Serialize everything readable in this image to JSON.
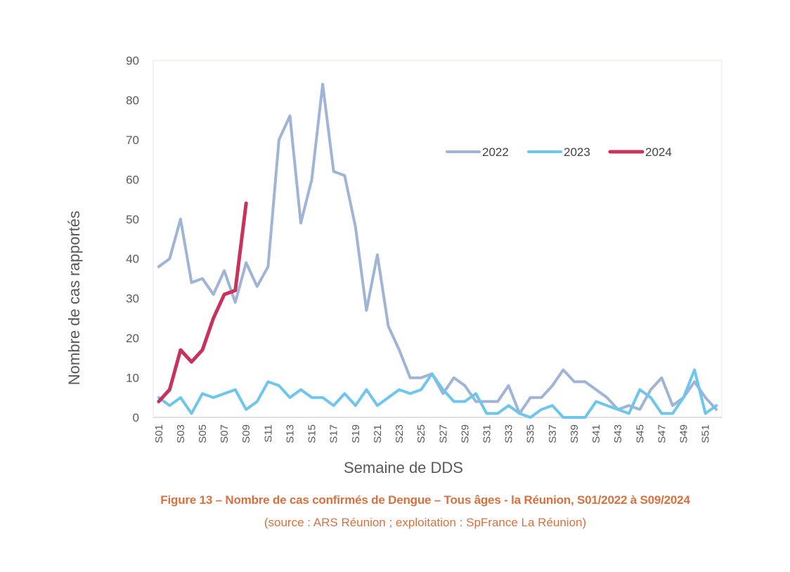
{
  "chart_data": {
    "type": "line",
    "title": "",
    "xlabel": "Semaine de DDS",
    "ylabel": "Nombre de cas rapportés",
    "ylim": [
      0,
      90
    ],
    "yticks": [
      0,
      10,
      20,
      30,
      40,
      50,
      60,
      70,
      80,
      90
    ],
    "grid": false,
    "legend_position": "top-right",
    "categories": [
      "S01",
      "S02",
      "S03",
      "S04",
      "S05",
      "S06",
      "S07",
      "S08",
      "S09",
      "S10",
      "S11",
      "S12",
      "S13",
      "S14",
      "S15",
      "S16",
      "S17",
      "S18",
      "S19",
      "S20",
      "S21",
      "S22",
      "S23",
      "S24",
      "S25",
      "S26",
      "S27",
      "S28",
      "S29",
      "S30",
      "S31",
      "S32",
      "S33",
      "S34",
      "S35",
      "S36",
      "S37",
      "S38",
      "S39",
      "S40",
      "S41",
      "S42",
      "S43",
      "S44",
      "S45",
      "S46",
      "S47",
      "S48",
      "S49",
      "S50",
      "S51",
      "S52"
    ],
    "tick_labels": [
      "S01",
      "S03",
      "S05",
      "S07",
      "S09",
      "S11",
      "S13",
      "S15",
      "S17",
      "S19",
      "S21",
      "S23",
      "S25",
      "S27",
      "S29",
      "S31",
      "S33",
      "S35",
      "S37",
      "S39",
      "S41",
      "S43",
      "S45",
      "S47",
      "S49",
      "S51"
    ],
    "series": [
      {
        "name": "2022",
        "color": "#9fb4d6",
        "values": [
          38,
          40,
          50,
          34,
          35,
          31,
          37,
          29,
          39,
          33,
          38,
          70,
          76,
          49,
          60,
          84,
          62,
          61,
          48,
          27,
          41,
          23,
          17,
          10,
          10,
          11,
          6,
          10,
          8,
          4,
          4,
          4,
          8,
          1,
          5,
          5,
          8,
          12,
          9,
          9,
          7,
          5,
          2,
          3,
          2,
          7,
          10,
          3,
          5,
          9,
          5,
          2
        ]
      },
      {
        "name": "2023",
        "color": "#6ec6ee",
        "values": [
          5,
          3,
          5,
          1,
          6,
          5,
          6,
          7,
          2,
          4,
          9,
          8,
          5,
          7,
          5,
          5,
          3,
          6,
          3,
          7,
          3,
          5,
          7,
          6,
          7,
          11,
          7,
          4,
          4,
          6,
          1,
          1,
          3,
          1,
          0,
          2,
          3,
          0,
          0,
          0,
          4,
          3,
          2,
          1,
          7,
          5,
          1,
          1,
          5,
          12,
          1,
          3
        ]
      },
      {
        "name": "2024",
        "color": "#c8325c",
        "values": [
          4,
          7,
          17,
          14,
          17,
          25,
          31,
          32,
          54
        ]
      }
    ]
  },
  "caption": {
    "title": "Figure 13 – Nombre de cas confirmés de Dengue – Tous âges - la Réunion, S01/2022 à S09/2024",
    "source": "(source : ARS Réunion ; exploitation : SpFrance La Réunion)"
  }
}
